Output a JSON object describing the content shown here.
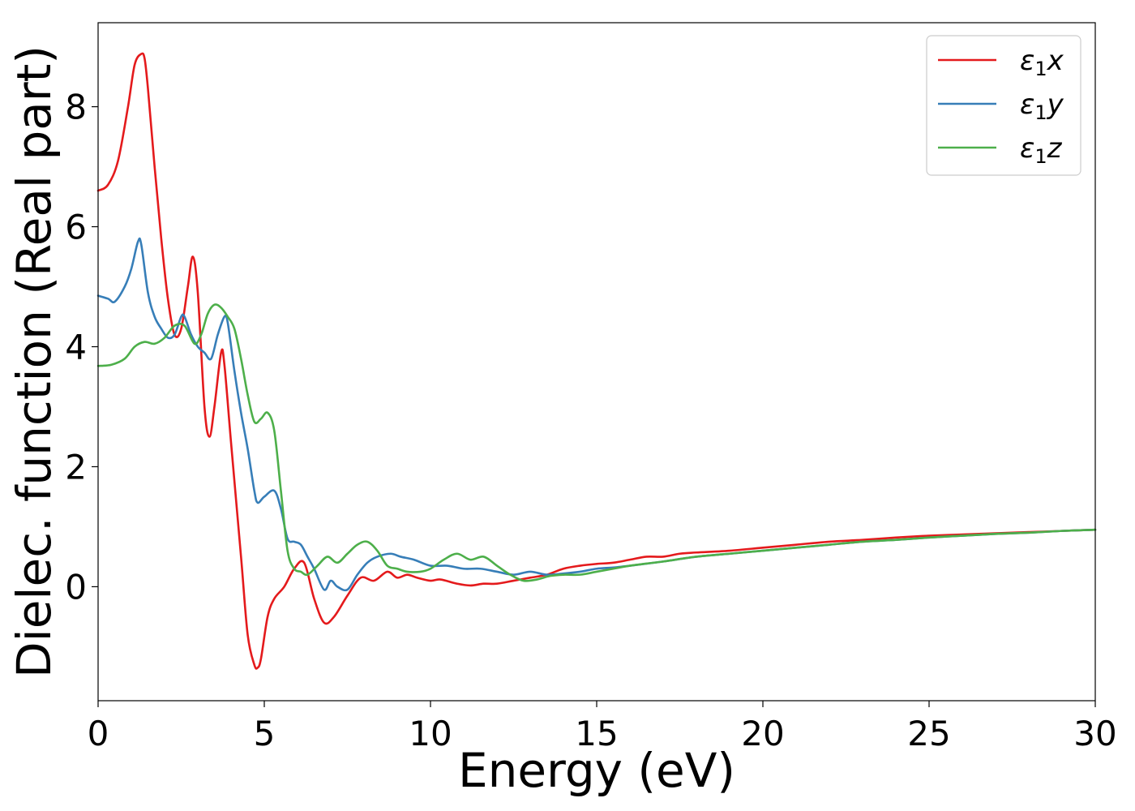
{
  "chart_data": {
    "type": "line",
    "xlabel": "Energy (eV)",
    "ylabel": "Dielec. function (Real part)",
    "xlim": [
      0,
      30
    ],
    "ylim": [
      -1.9,
      9.4
    ],
    "xticks": [
      0,
      5,
      10,
      15,
      20,
      25,
      30
    ],
    "xtick_labels": [
      "0",
      "5",
      "10",
      "15",
      "20",
      "25",
      "30"
    ],
    "yticks": [
      0,
      2,
      4,
      6,
      8
    ],
    "ytick_labels": [
      "0",
      "2",
      "4",
      "6",
      "8"
    ],
    "grid": false,
    "legend_position": "top-right",
    "series": [
      {
        "name": "ε₁x",
        "legend": {
          "base": "ε",
          "sub": "1",
          "var": "x"
        },
        "color": "#e41a1c",
        "x": [
          0,
          0.3,
          0.6,
          0.9,
          1.1,
          1.3,
          1.4,
          1.5,
          1.7,
          1.9,
          2.1,
          2.3,
          2.5,
          2.7,
          2.85,
          3.0,
          3.2,
          3.35,
          3.5,
          3.7,
          3.8,
          4.0,
          4.3,
          4.5,
          4.7,
          4.8,
          4.9,
          5.1,
          5.3,
          5.6,
          5.9,
          6.2,
          6.5,
          6.8,
          7.1,
          7.5,
          7.9,
          8.3,
          8.7,
          9.0,
          9.3,
          9.6,
          10.0,
          10.3,
          10.8,
          11.2,
          11.6,
          12.0,
          12.5,
          13.0,
          13.5,
          14.0,
          14.5,
          15.0,
          15.5,
          16.0,
          16.5,
          17.0,
          17.5,
          18.0,
          19.0,
          20.0,
          21.0,
          22.0,
          23.0,
          24.0,
          25.0,
          26.0,
          27.0,
          28.0,
          29.0,
          30.0
        ],
        "y": [
          6.6,
          6.7,
          7.1,
          8.0,
          8.7,
          8.88,
          8.8,
          8.3,
          7.0,
          5.8,
          4.8,
          4.2,
          4.3,
          5.0,
          5.5,
          4.9,
          3.0,
          2.5,
          3.0,
          3.9,
          3.7,
          2.4,
          0.5,
          -0.8,
          -1.3,
          -1.35,
          -1.2,
          -0.5,
          -0.2,
          0.0,
          0.3,
          0.4,
          -0.2,
          -0.6,
          -0.5,
          -0.15,
          0.15,
          0.1,
          0.25,
          0.15,
          0.2,
          0.15,
          0.1,
          0.12,
          0.05,
          0.02,
          0.05,
          0.05,
          0.1,
          0.15,
          0.2,
          0.3,
          0.35,
          0.38,
          0.4,
          0.45,
          0.5,
          0.5,
          0.55,
          0.57,
          0.6,
          0.65,
          0.7,
          0.75,
          0.78,
          0.82,
          0.85,
          0.87,
          0.89,
          0.91,
          0.93,
          0.95
        ]
      },
      {
        "name": "ε₁y",
        "legend": {
          "base": "ε",
          "sub": "1",
          "var": "y"
        },
        "color": "#377eb8",
        "x": [
          0,
          0.3,
          0.5,
          0.8,
          1.0,
          1.2,
          1.3,
          1.5,
          1.7,
          1.9,
          2.1,
          2.3,
          2.5,
          2.6,
          2.8,
          3.0,
          3.2,
          3.4,
          3.6,
          3.8,
          3.9,
          4.1,
          4.3,
          4.5,
          4.7,
          4.8,
          5.0,
          5.3,
          5.5,
          5.7,
          5.9,
          6.1,
          6.3,
          6.5,
          6.8,
          7.0,
          7.2,
          7.5,
          7.8,
          8.1,
          8.4,
          8.8,
          9.1,
          9.5,
          10.0,
          10.5,
          11.0,
          11.5,
          12.0,
          12.5,
          13.0,
          13.5,
          14.0,
          14.5,
          15.0,
          15.5,
          16.0,
          17.0,
          18.0,
          19.0,
          20.0,
          21.0,
          22.0,
          23.0,
          24.0,
          25.0,
          26.0,
          27.0,
          28.0,
          29.0,
          30.0
        ],
        "y": [
          4.85,
          4.8,
          4.75,
          5.0,
          5.3,
          5.75,
          5.7,
          4.9,
          4.5,
          4.3,
          4.15,
          4.2,
          4.5,
          4.5,
          4.2,
          4.0,
          3.9,
          3.8,
          4.2,
          4.5,
          4.4,
          3.6,
          2.9,
          2.3,
          1.6,
          1.4,
          1.5,
          1.6,
          1.3,
          0.8,
          0.75,
          0.7,
          0.5,
          0.3,
          -0.05,
          0.1,
          0.0,
          -0.05,
          0.2,
          0.4,
          0.5,
          0.55,
          0.5,
          0.45,
          0.35,
          0.35,
          0.3,
          0.3,
          0.25,
          0.2,
          0.25,
          0.2,
          0.22,
          0.25,
          0.3,
          0.32,
          0.35,
          0.42,
          0.5,
          0.55,
          0.6,
          0.65,
          0.7,
          0.75,
          0.78,
          0.82,
          0.85,
          0.88,
          0.9,
          0.93,
          0.95
        ]
      },
      {
        "name": "ε₁z",
        "legend": {
          "base": "ε",
          "sub": "1",
          "var": "z"
        },
        "color": "#4daf4a",
        "x": [
          0,
          0.4,
          0.8,
          1.1,
          1.4,
          1.7,
          2.0,
          2.3,
          2.6,
          2.9,
          3.1,
          3.3,
          3.5,
          3.7,
          3.9,
          4.1,
          4.3,
          4.5,
          4.7,
          4.9,
          5.1,
          5.3,
          5.5,
          5.7,
          5.9,
          6.1,
          6.3,
          6.6,
          6.9,
          7.2,
          7.5,
          7.8,
          8.1,
          8.4,
          8.7,
          9.0,
          9.3,
          9.7,
          10.0,
          10.4,
          10.8,
          11.2,
          11.6,
          12.0,
          12.4,
          12.8,
          13.2,
          13.6,
          14.0,
          14.5,
          15.0,
          15.5,
          16.0,
          17.0,
          18.0,
          19.0,
          20.0,
          21.0,
          22.0,
          23.0,
          24.0,
          25.0,
          26.0,
          27.0,
          28.0,
          29.0,
          30.0
        ],
        "y": [
          3.68,
          3.7,
          3.8,
          4.0,
          4.08,
          4.05,
          4.15,
          4.35,
          4.35,
          4.05,
          4.2,
          4.55,
          4.7,
          4.65,
          4.5,
          4.3,
          3.8,
          3.2,
          2.75,
          2.8,
          2.9,
          2.6,
          1.6,
          0.6,
          0.3,
          0.25,
          0.2,
          0.35,
          0.5,
          0.4,
          0.55,
          0.7,
          0.75,
          0.6,
          0.35,
          0.3,
          0.25,
          0.25,
          0.3,
          0.45,
          0.55,
          0.45,
          0.5,
          0.35,
          0.2,
          0.1,
          0.12,
          0.18,
          0.2,
          0.2,
          0.25,
          0.3,
          0.35,
          0.42,
          0.5,
          0.55,
          0.6,
          0.65,
          0.7,
          0.75,
          0.78,
          0.82,
          0.85,
          0.88,
          0.9,
          0.93,
          0.95
        ]
      }
    ]
  }
}
